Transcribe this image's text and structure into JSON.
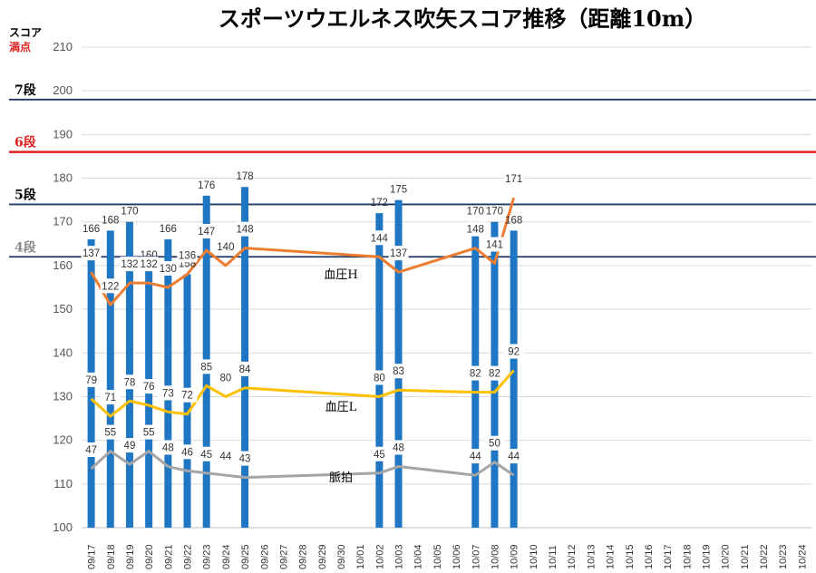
{
  "chart_data": {
    "type": "bar",
    "title": "スポーツウエルネス吹矢スコア推移（距離10m）",
    "ylabel_top": "スコア",
    "ylabel_sub": "満点",
    "ylim": [
      100,
      210
    ],
    "yticks": [
      "100",
      "110",
      "120",
      "130",
      "140",
      "150",
      "160",
      "170",
      "180",
      "190",
      "200",
      "210"
    ],
    "categories": [
      "09/17",
      "09/18",
      "09/19",
      "09/20",
      "09/21",
      "09/22",
      "09/23",
      "09/24",
      "09/25",
      "09/26",
      "09/27",
      "09/28",
      "09/29",
      "09/30",
      "10/01",
      "10/02",
      "10/03",
      "10/04",
      "10/05",
      "10/06",
      "10/07",
      "10/08",
      "10/09",
      "10/10",
      "10/11",
      "10/12",
      "10/13",
      "10/14",
      "10/15",
      "10/16",
      "10/17",
      "10/18",
      "10/19",
      "10/20",
      "10/21",
      "10/22",
      "10/23",
      "10/24"
    ],
    "score": {
      "values": [
        166,
        168,
        170,
        160,
        166,
        158,
        176,
        null,
        178,
        null,
        null,
        null,
        null,
        null,
        null,
        172,
        175,
        null,
        null,
        null,
        170,
        170,
        168,
        null,
        null,
        null,
        null,
        null,
        null,
        null,
        null,
        null,
        null,
        null,
        null,
        null,
        null,
        null
      ],
      "color": "#1f77c4"
    },
    "series": [
      {
        "name": "血圧H",
        "color": "#ed7d31",
        "values": [
          137,
          122,
          132,
          132,
          130,
          136,
          147,
          140,
          148,
          null,
          null,
          null,
          null,
          null,
          null,
          144,
          137,
          null,
          null,
          null,
          148,
          141,
          171,
          null,
          null,
          null,
          null,
          null,
          null,
          null,
          null,
          null,
          null,
          null,
          null,
          null,
          null,
          null
        ]
      },
      {
        "name": "血圧L",
        "color": "#ffc000",
        "values": [
          79,
          71,
          78,
          76,
          73,
          72,
          85,
          80,
          84,
          null,
          null,
          null,
          null,
          null,
          null,
          80,
          83,
          null,
          null,
          null,
          82,
          82,
          92,
          null,
          null,
          null,
          null,
          null,
          null,
          null,
          null,
          null,
          null,
          null,
          null,
          null,
          null,
          null
        ]
      },
      {
        "name": "脈拍",
        "color": "#a5a5a5",
        "values": [
          47,
          55,
          49,
          55,
          48,
          46,
          45,
          44,
          43,
          null,
          null,
          null,
          null,
          null,
          null,
          45,
          48,
          null,
          null,
          null,
          44,
          50,
          44,
          null,
          null,
          null,
          null,
          null,
          null,
          null,
          null,
          null,
          null,
          null,
          null,
          null,
          null,
          null
        ]
      }
    ],
    "rank_lines": [
      {
        "label": "7段",
        "value": 198,
        "color": "#1f3864",
        "text_color": "#000000"
      },
      {
        "label": "6段",
        "value": 186,
        "color": "#e02020",
        "text_color": "#e02020"
      },
      {
        "label": "5段",
        "value": 174,
        "color": "#1f3864",
        "text_color": "#000000"
      },
      {
        "label": "4段",
        "value": 162,
        "color": "#1f3864",
        "text_color": "#8a8a8a"
      }
    ],
    "grid": true
  }
}
